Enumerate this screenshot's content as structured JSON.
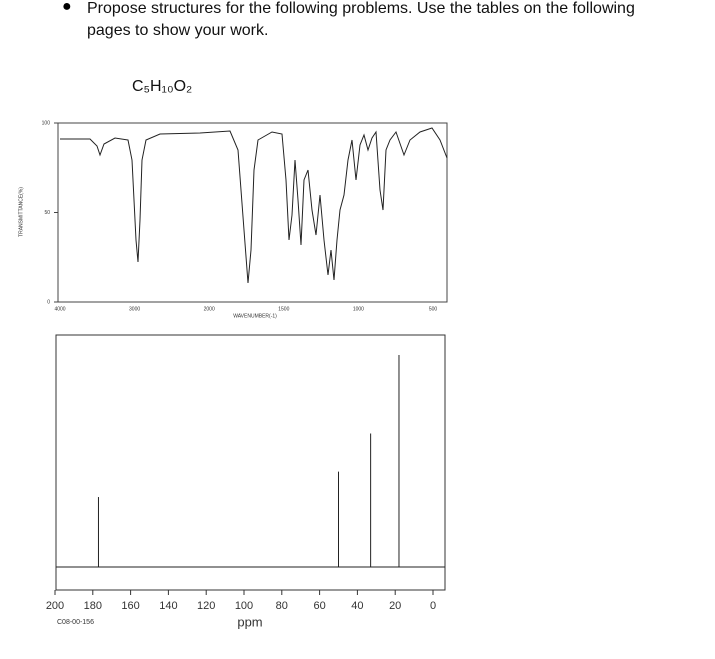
{
  "instruction": "Propose structures for the following problems. Use the tables on the following pages to show your work.",
  "formula": "C₅H₁₀O₂",
  "ir_spectrum": {
    "y_axis_label": "TRANSMITTANCE(%)",
    "y_ticks": [
      "100",
      "50",
      "0"
    ],
    "x_ticks": [
      "4000",
      "3000",
      "2000",
      "1500",
      "1000",
      "500"
    ],
    "x_axis_label": "WAVENUMBER(-1)"
  },
  "nmr_spectrum": {
    "xlim": [
      200,
      0
    ],
    "x_ticks": [
      200,
      180,
      160,
      140,
      120,
      100,
      80,
      60,
      40,
      20,
      0
    ],
    "peaks_ppm": [
      177,
      50,
      33,
      18
    ],
    "peak_intensity": [
      33,
      45,
      63,
      100
    ],
    "x_axis_label": "ppm",
    "code": "C08-00-156"
  }
}
